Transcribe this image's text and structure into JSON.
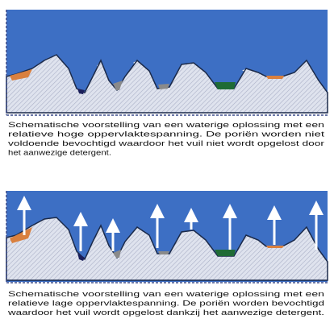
{
  "panels": [
    {
      "caption": [
        "Schematische voorstelling van een waterige oplossing met een",
        "relatieve hoge oppervlaktespanning. De poriën worden niet",
        "voldoende bevochtigd waardoor het vuil niet wordt opgelost door",
        "het aanwezige detergent."
      ]
    },
    {
      "caption": [
        "Schematische voorstelling van een waterige oplossing met een",
        "relatieve lage oppervlaktespanning. De poriën worden bevochtigd",
        "waardoor het vuil wordt opgelost dankzij het aanwezige detergent."
      ]
    }
  ]
}
